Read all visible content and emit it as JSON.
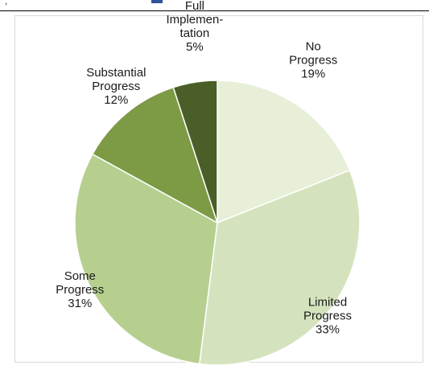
{
  "top_fragment": {
    "tick": ",",
    "accent": "#2f5597"
  },
  "chart_data": {
    "type": "pie",
    "title": "",
    "slices": [
      {
        "label_lines": [
          "No",
          "Progress",
          "19%"
        ],
        "value": 19,
        "color": "#e8efd9"
      },
      {
        "label_lines": [
          "Limited",
          "Progress",
          "33%"
        ],
        "value": 33,
        "color": "#d4e3bd"
      },
      {
        "label_lines": [
          "Some",
          "Progress",
          "31%"
        ],
        "value": 31,
        "color": "#b6cf8f"
      },
      {
        "label_lines": [
          "Substantial",
          "Progress",
          "12%"
        ],
        "value": 12,
        "color": "#7d9a45"
      },
      {
        "label_lines": [
          "Full",
          "Implemen-",
          "tation",
          "5%"
        ],
        "value": 5,
        "color": "#4a5e28"
      }
    ]
  }
}
